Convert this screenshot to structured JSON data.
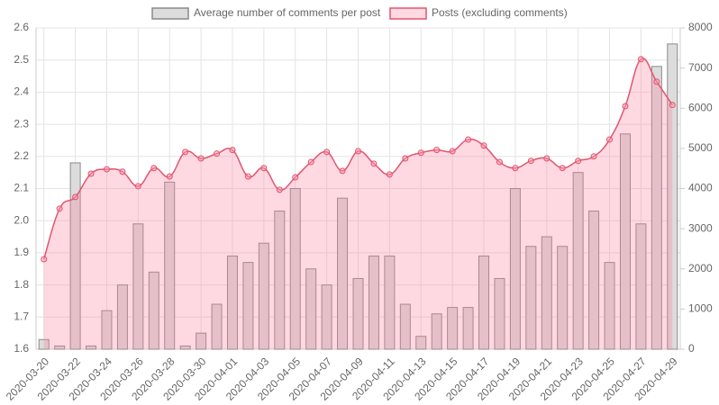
{
  "chart_data": {
    "type": "bar-line",
    "categories": [
      "2020-03-20",
      null,
      "2020-03-22",
      null,
      "2020-03-24",
      null,
      "2020-03-26",
      null,
      "2020-03-28",
      null,
      "2020-03-30",
      null,
      "2020-04-01",
      null,
      "2020-04-03",
      null,
      "2020-04-05",
      null,
      "2020-04-07",
      null,
      "2020-04-09",
      null,
      "2020-04-11",
      null,
      "2020-04-13",
      null,
      "2020-04-15",
      null,
      "2020-04-17",
      null,
      "2020-04-19",
      null,
      "2020-04-21",
      null,
      "2020-04-23",
      null,
      "2020-04-25",
      null,
      "2020-04-27",
      null,
      "2020-04-29"
    ],
    "series": [
      {
        "name": "Average number of comments per post",
        "type": "bar",
        "axis": "y",
        "color": "#dcdcdc",
        "border": "#8a8a8a",
        "values": [
          1.63,
          1.61,
          2.18,
          1.61,
          1.72,
          1.8,
          1.99,
          1.84,
          2.12,
          1.61,
          1.65,
          1.74,
          1.89,
          1.87,
          1.93,
          2.03,
          2.1,
          1.85,
          1.8,
          2.07,
          1.82,
          1.89,
          1.89,
          1.74,
          1.64,
          1.71,
          1.73,
          1.73,
          1.89,
          1.82,
          2.1,
          1.92,
          1.95,
          1.92,
          2.15,
          2.03,
          1.87,
          2.27,
          1.99,
          2.48,
          2.55
        ]
      },
      {
        "name": "Posts (excluding comments)",
        "type": "line",
        "axis": "y2",
        "color": "#e0556f",
        "fill": "rgba(255,130,160,0.3)",
        "values": [
          2240,
          3500,
          3790,
          4370,
          4480,
          4420,
          4060,
          4510,
          4300,
          4910,
          4750,
          4870,
          4960,
          4300,
          4510,
          3970,
          4280,
          4660,
          4910,
          4440,
          4930,
          4620,
          4350,
          4750,
          4890,
          4960,
          4930,
          5220,
          5070,
          4660,
          4510,
          4690,
          4750,
          4510,
          4690,
          4800,
          5220,
          6050,
          7220,
          6660,
          6080
        ]
      }
    ],
    "ylim": [
      1.6,
      2.6
    ],
    "yticks": [
      1.6,
      1.7,
      1.8,
      1.9,
      {
        "value": 2,
        "label": "2.0"
      },
      2.1,
      2.2,
      2.3,
      2.4,
      2.5,
      2.6
    ],
    "y2lim": [
      0,
      8000
    ],
    "y2ticks": [
      0,
      1000,
      2000,
      3000,
      4000,
      5000,
      6000,
      7000,
      8000
    ],
    "grid": true,
    "legend": "top"
  }
}
